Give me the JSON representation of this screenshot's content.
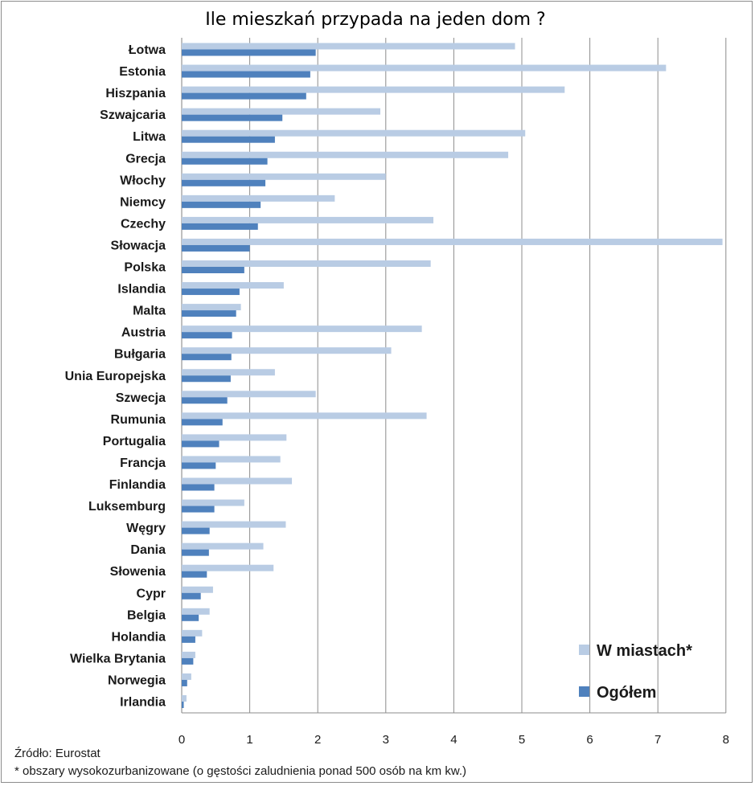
{
  "chart_data": {
    "type": "bar",
    "orientation": "horizontal",
    "title": "Ile mieszkań przypada na jeden dom ?",
    "xlim": [
      0,
      8
    ],
    "x_ticks": [
      "0",
      "1",
      "2",
      "3",
      "4",
      "5",
      "6",
      "7",
      "8"
    ],
    "grid": true,
    "legend_position": "bottom-right",
    "categories": [
      "Łotwa",
      "Estonia",
      "Hiszpania",
      "Szwajcaria",
      "Litwa",
      "Grecja",
      "Włochy",
      "Niemcy",
      "Czechy",
      "Słowacja",
      "Polska",
      "Islandia",
      "Malta",
      "Austria",
      "Bułgaria",
      "Unia Europejska",
      "Szwecja",
      "Rumunia",
      "Portugalia",
      "Francja",
      "Finlandia",
      "Luksemburg",
      "Węgry",
      "Dania",
      "Słowenia",
      "Cypr",
      "Belgia",
      "Holandia",
      "Wielka Brytania",
      "Norwegia",
      "Irlandia"
    ],
    "series": [
      {
        "name": "W miastach*",
        "color": "#b9cce4",
        "values": [
          4.9,
          7.12,
          5.63,
          2.92,
          5.05,
          4.8,
          3.0,
          2.25,
          3.7,
          7.95,
          3.66,
          1.5,
          0.87,
          3.53,
          3.08,
          1.37,
          1.97,
          3.6,
          1.54,
          1.45,
          1.62,
          0.92,
          1.53,
          1.2,
          1.35,
          0.46,
          0.41,
          0.3,
          0.2,
          0.14,
          0.07
        ]
      },
      {
        "name": "Ogółem",
        "color": "#4f81bd",
        "values": [
          1.97,
          1.89,
          1.83,
          1.48,
          1.37,
          1.26,
          1.23,
          1.16,
          1.12,
          1.0,
          0.92,
          0.85,
          0.8,
          0.74,
          0.73,
          0.72,
          0.67,
          0.6,
          0.55,
          0.5,
          0.48,
          0.48,
          0.41,
          0.4,
          0.37,
          0.28,
          0.25,
          0.2,
          0.17,
          0.08,
          0.03
        ]
      }
    ]
  },
  "notes": {
    "source": "Źródło: Eurostat",
    "footnote": "* obszary wysokozurbanizowane (o gęstości zaludnienia ponad 500 osób na km kw.)"
  }
}
